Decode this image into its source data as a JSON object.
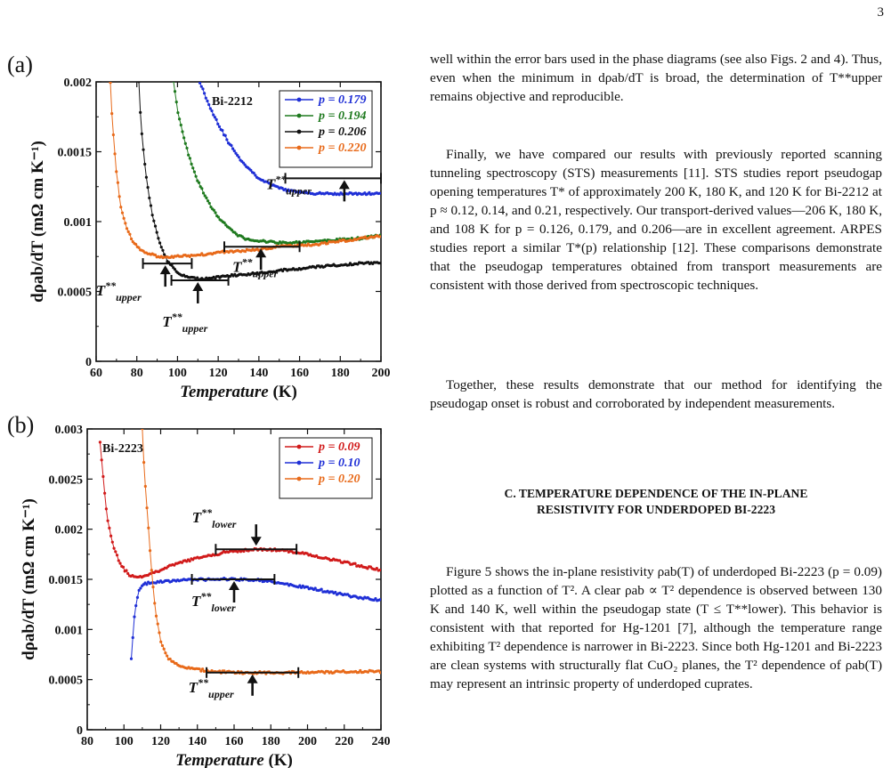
{
  "page_number": "3",
  "panel_a_label": "(a)",
  "panel_b_label": "(b)",
  "right_column": {
    "p1": "well within the error bars used in the phase diagrams (see also Figs. 2 and 4). Thus, even when the minimum in dρab/dT is broad, the determination of T**upper remains objective and reproducible.",
    "p2": "Finally, we have compared our results with previously reported scanning tunneling spectroscopy (STS) measurements [11]. STS studies report pseudogap opening temperatures T* of approximately 200 K, 180 K, and 120 K for Bi-2212 at p ≈ 0.12, 0.14, and 0.21, respectively. Our transport-derived values—206 K, 180 K, and 108 K for p = 0.126, 0.179, and 0.206—are in excellent agreement. ARPES studies report a similar T*(p) relationship [12]. These comparisons demonstrate that the pseudogap temperatures obtained from transport measurements are consistent with those derived from spectroscopic techniques.",
    "p3": "Together, these results demonstrate that our method for identifying the pseudogap onset is robust and corroborated by independent measurements.",
    "section_heading_1": "C. TEMPERATURE DEPENDENCE OF THE IN-PLANE",
    "section_heading_2": "RESISTIVITY FOR UNDERDOPED BI-2223",
    "p4": "Figure 5 shows the in-plane resistivity ρab(T) of underdoped Bi-2223 (p = 0.09) plotted as a function of T². A clear ρab ∝ T² dependence is observed between 130 K and 140 K, well within the pseudogap state (T ≤ T**lower). This behavior is consistent with that reported for Hg-1201 [7], although the temperature range exhibiting T² dependence is narrower in Bi-2223. Since both Hg-1201 and Bi-2223 are clean systems with structurally flat CuO₂ planes, the T² dependence of ρab(T) may represent an intrinsic property of underdoped cuprates."
  },
  "chart_data": [
    {
      "type": "scatter",
      "panel": "(a)",
      "sample": "Bi-2212",
      "xlabel": "Temperature (K)",
      "ylabel": "dρab/dT (mΩ cm K⁻¹)",
      "xlim": [
        60,
        200
      ],
      "ylim": [
        0,
        0.002
      ],
      "xticks": [
        "60",
        "80",
        "100",
        "120",
        "140",
        "160",
        "180",
        "200"
      ],
      "yticks": [
        "0",
        "0.0005",
        "0.001",
        "0.0015",
        "0.002"
      ],
      "legend_position": "top-right",
      "series": [
        {
          "name": "p = 0.179",
          "color": "#1f2fd6",
          "points": [
            [
              111,
              0.002
            ],
            [
              115,
              0.00185
            ],
            [
              120,
              0.0017
            ],
            [
              125,
              0.00157
            ],
            [
              130,
              0.00146
            ],
            [
              135,
              0.00138
            ],
            [
              140,
              0.00131
            ],
            [
              145,
              0.00127
            ],
            [
              150,
              0.00124
            ],
            [
              155,
              0.00122
            ],
            [
              160,
              0.00121
            ],
            [
              170,
              0.0012
            ],
            [
              180,
              0.0012
            ],
            [
              190,
              0.0012
            ],
            [
              200,
              0.0012
            ]
          ]
        },
        {
          "name": "p = 0.194",
          "color": "#1f7a1f",
          "points": [
            [
              98,
              0.002
            ],
            [
              100,
              0.0018
            ],
            [
              103,
              0.0016
            ],
            [
              106,
              0.00145
            ],
            [
              110,
              0.00129
            ],
            [
              115,
              0.00114
            ],
            [
              120,
              0.00103
            ],
            [
              125,
              0.00096
            ],
            [
              130,
              0.0009
            ],
            [
              135,
              0.00087
            ],
            [
              140,
              0.00086
            ],
            [
              150,
              0.00085
            ],
            [
              160,
              0.00085
            ],
            [
              170,
              0.00086
            ],
            [
              180,
              0.00087
            ],
            [
              190,
              0.00088
            ],
            [
              200,
              0.0009
            ]
          ]
        },
        {
          "name": "p = 0.206",
          "color": "#111111",
          "points": [
            [
              81,
              0.002
            ],
            [
              82,
              0.0017
            ],
            [
              84,
              0.0014
            ],
            [
              86,
              0.00118
            ],
            [
              88,
              0.00102
            ],
            [
              91,
              0.00086
            ],
            [
              95,
              0.00072
            ],
            [
              100,
              0.00063
            ],
            [
              105,
              0.0006
            ],
            [
              110,
              0.00059
            ],
            [
              120,
              0.0006
            ],
            [
              130,
              0.00062
            ],
            [
              140,
              0.00063
            ],
            [
              150,
              0.00065
            ],
            [
              160,
              0.00066
            ],
            [
              170,
              0.00068
            ],
            [
              180,
              0.00069
            ],
            [
              190,
              0.0007
            ],
            [
              200,
              0.00071
            ]
          ]
        },
        {
          "name": "p = 0.220",
          "color": "#e86a1a",
          "points": [
            [
              67,
              0.002
            ],
            [
              68,
              0.0017
            ],
            [
              70,
              0.00135
            ],
            [
              72,
              0.00112
            ],
            [
              75,
              0.00095
            ],
            [
              78,
              0.00086
            ],
            [
              82,
              0.0008
            ],
            [
              86,
              0.00077
            ],
            [
              90,
              0.00075
            ],
            [
              95,
              0.00074
            ],
            [
              100,
              0.00075
            ],
            [
              110,
              0.00076
            ],
            [
              120,
              0.00078
            ],
            [
              130,
              0.00079
            ],
            [
              140,
              0.0008
            ],
            [
              150,
              0.00082
            ],
            [
              160,
              0.00083
            ],
            [
              170,
              0.00084
            ],
            [
              180,
              0.00086
            ],
            [
              190,
              0.00088
            ],
            [
              200,
              0.0009
            ]
          ]
        }
      ],
      "annotations": [
        {
          "label": "T**upper",
          "arrow_x": 182,
          "range": [
            153,
            200
          ],
          "y": 0.00131
        },
        {
          "label": "T**upper",
          "arrow_x": 141,
          "range": [
            123,
            160
          ],
          "y": 0.00082
        },
        {
          "label": "T**upper",
          "arrow_x": 110,
          "range": [
            97,
            125
          ],
          "y": 0.00058
        },
        {
          "label": "T**upper",
          "arrow_x": 94,
          "range": [
            83,
            107
          ],
          "y": 0.0007
        }
      ]
    },
    {
      "type": "scatter",
      "panel": "(b)",
      "sample": "Bi-2223",
      "xlabel": "Temperature (K)",
      "ylabel": "dρab/dT (mΩ cm K⁻¹)",
      "xlim": [
        80,
        240
      ],
      "ylim": [
        0,
        0.003
      ],
      "xticks": [
        "80",
        "100",
        "120",
        "140",
        "160",
        "180",
        "200",
        "220",
        "240"
      ],
      "yticks": [
        "0",
        "0.0005",
        "0.001",
        "0.0015",
        "0.002",
        "0.0025",
        "0.003"
      ],
      "legend_position": "top-right",
      "series": [
        {
          "name": "p = 0.09",
          "color": "#d11a1a",
          "points": [
            [
              87,
              0.00288
            ],
            [
              89,
              0.00245
            ],
            [
              91,
              0.0021
            ],
            [
              94,
              0.00185
            ],
            [
              97,
              0.0017
            ],
            [
              100,
              0.0016
            ],
            [
              104,
              0.00153
            ],
            [
              108,
              0.00152
            ],
            [
              115,
              0.00156
            ],
            [
              125,
              0.00163
            ],
            [
              135,
              0.00169
            ],
            [
              145,
              0.00173
            ],
            [
              155,
              0.00177
            ],
            [
              165,
              0.00179
            ],
            [
              175,
              0.0018
            ],
            [
              185,
              0.00179
            ],
            [
              195,
              0.00177
            ],
            [
              205,
              0.00173
            ],
            [
              215,
              0.00169
            ],
            [
              225,
              0.00165
            ],
            [
              235,
              0.00161
            ],
            [
              240,
              0.00159
            ]
          ]
        },
        {
          "name": "p = 0.10",
          "color": "#1f2fd6",
          "points": [
            [
              104,
              0.0007
            ],
            [
              105,
              0.00095
            ],
            [
              106,
              0.0012
            ],
            [
              108,
              0.00138
            ],
            [
              111,
              0.00145
            ],
            [
              115,
              0.00147
            ],
            [
              125,
              0.00148
            ],
            [
              135,
              0.0015
            ],
            [
              145,
              0.0015
            ],
            [
              155,
              0.0015
            ],
            [
              165,
              0.0015
            ],
            [
              175,
              0.00149
            ],
            [
              185,
              0.00146
            ],
            [
              195,
              0.00143
            ],
            [
              205,
              0.0014
            ],
            [
              215,
              0.00136
            ],
            [
              225,
              0.00133
            ],
            [
              235,
              0.0013
            ],
            [
              240,
              0.00129
            ]
          ]
        },
        {
          "name": "p = 0.20",
          "color": "#e86a1a",
          "points": [
            [
              110,
              0.003
            ],
            [
              111,
              0.0026
            ],
            [
              113,
              0.0021
            ],
            [
              115,
              0.0016
            ],
            [
              117,
              0.0012
            ],
            [
              120,
              0.00088
            ],
            [
              124,
              0.00072
            ],
            [
              130,
              0.00063
            ],
            [
              140,
              0.0006
            ],
            [
              150,
              0.00058
            ],
            [
              160,
              0.00057
            ],
            [
              180,
              0.00057
            ],
            [
              200,
              0.00057
            ],
            [
              220,
              0.00058
            ],
            [
              240,
              0.00058
            ]
          ]
        }
      ],
      "annotations": [
        {
          "label": "T**lower",
          "arrow_x": 172,
          "range": [
            150,
            194
          ],
          "y": 0.0018
        },
        {
          "label": "T**lower",
          "arrow_x": 160,
          "range": [
            137,
            182
          ],
          "y": 0.0015
        },
        {
          "label": "T**upper",
          "arrow_x": 170,
          "range": [
            145,
            195
          ],
          "y": 0.00057
        }
      ]
    }
  ]
}
